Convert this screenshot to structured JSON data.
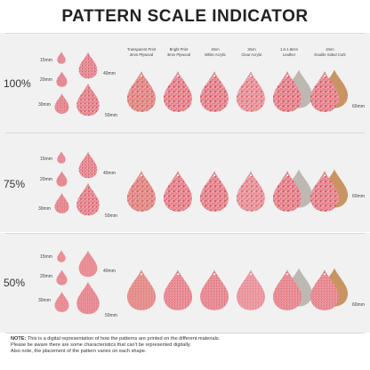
{
  "title": "PATTERN SCALE INDICATOR",
  "rows": [
    {
      "percent": "100%",
      "sizes": [
        "15mm",
        "20mm",
        "30mm",
        "40mm",
        "50mm"
      ],
      "length_label": "60mm"
    },
    {
      "percent": "75%",
      "sizes": [
        "15mm",
        "20mm",
        "30mm",
        "40mm",
        "50mm"
      ],
      "length_label": "60mm"
    },
    {
      "percent": "50%",
      "sizes": [
        "15mm",
        "20mm",
        "30mm",
        "40mm",
        "50mm"
      ],
      "length_label": "60mm"
    }
  ],
  "materials": [
    {
      "line1": "Transparent Print",
      "line2": "3mm Plywood",
      "base": "#d7a079"
    },
    {
      "line1": "Bright Print",
      "line2": "3mm Plywood",
      "base": "#e9b09b"
    },
    {
      "line1": "3mm",
      "line2": "White Acrylic",
      "base": "#f6f1ee"
    },
    {
      "line1": "3mm",
      "line2": "Clear Acrylic",
      "base": "#fbf7f5"
    },
    {
      "line1": "1.6-1.8mm",
      "line2": "Leather",
      "base": "#bdb8b2"
    },
    {
      "line1": "2mm",
      "line2": "Double Sided Cork",
      "base": "#c99463"
    }
  ],
  "note": {
    "label": "NOTE:",
    "line1": " This is a digital representation of how the patterns are printed on the different materials.",
    "line2": "Please be aware there are some characteristics that can't be represented digitally.",
    "line3": "Also note, the placement of the pattern varies on each shape."
  },
  "colors": {
    "pattern_pink": "#ef7f88",
    "pattern_dark": "#3b3b3b",
    "band": "#f1f1f1"
  }
}
